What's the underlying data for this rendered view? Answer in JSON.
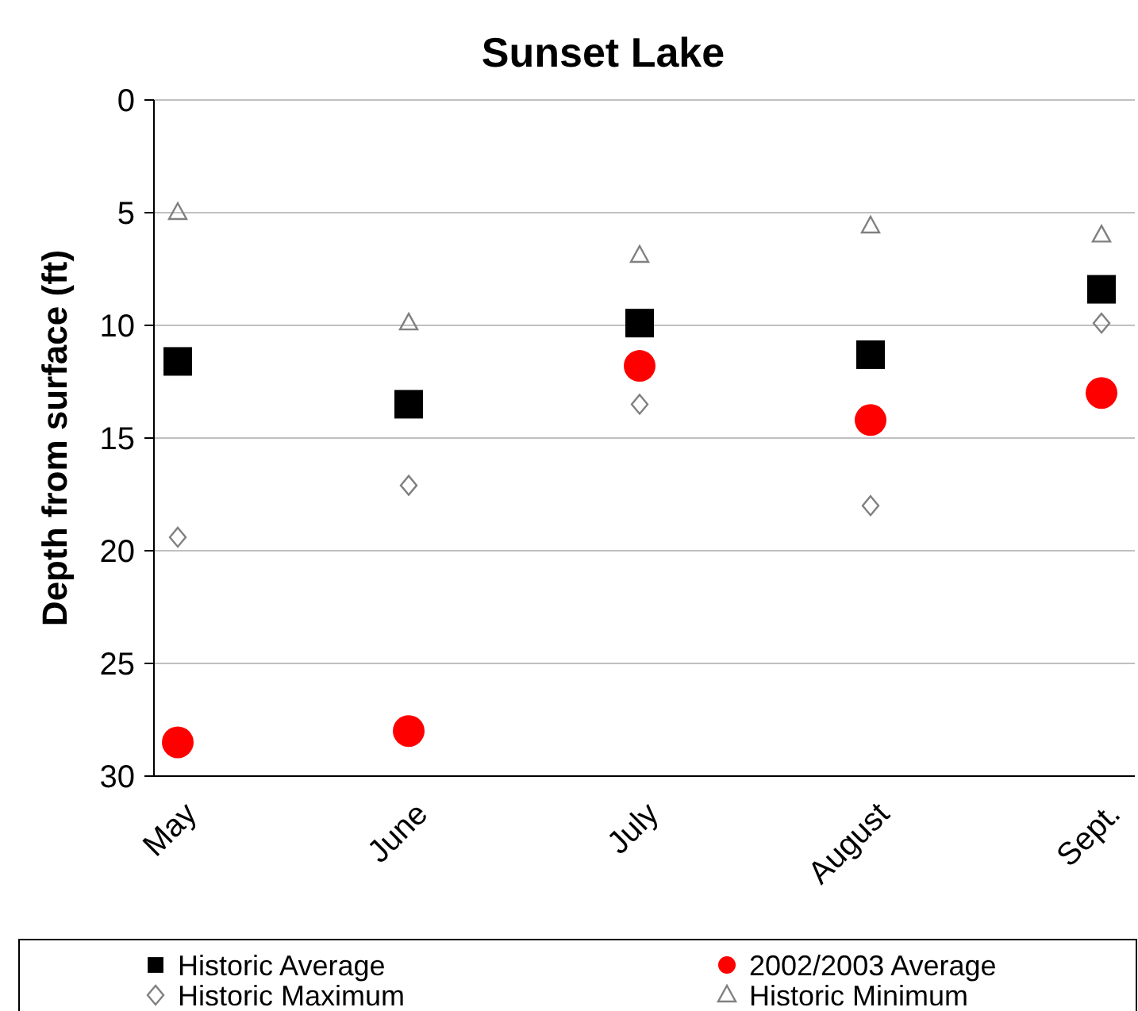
{
  "chart_data": {
    "type": "scatter",
    "title": "Sunset Lake",
    "ylabel": "Depth from surface (ft)",
    "categories": [
      "May",
      "June",
      "July",
      "August",
      "Sept."
    ],
    "ylim": [
      30,
      0
    ],
    "yticks": [
      0,
      5,
      10,
      15,
      20,
      25,
      30
    ],
    "grid": "y",
    "legend": "bottom",
    "series": [
      {
        "name": "Historic Average",
        "color": "#000000",
        "marker": "square",
        "values": [
          11.6,
          13.5,
          9.9,
          11.3,
          8.4
        ]
      },
      {
        "name": "2002/2003 Average",
        "color": "#ff0000",
        "marker": "circle",
        "values": [
          28.5,
          28.0,
          11.8,
          14.2,
          13.0
        ]
      },
      {
        "name": "Historic Maximum",
        "color": "#808080",
        "marker": "diamond",
        "values": [
          19.4,
          17.1,
          13.5,
          18.0,
          9.9
        ]
      },
      {
        "name": "Historic Minimum",
        "color": "#808080",
        "marker": "triangle",
        "values": [
          5.0,
          9.9,
          6.9,
          5.6,
          6.0
        ]
      }
    ]
  }
}
